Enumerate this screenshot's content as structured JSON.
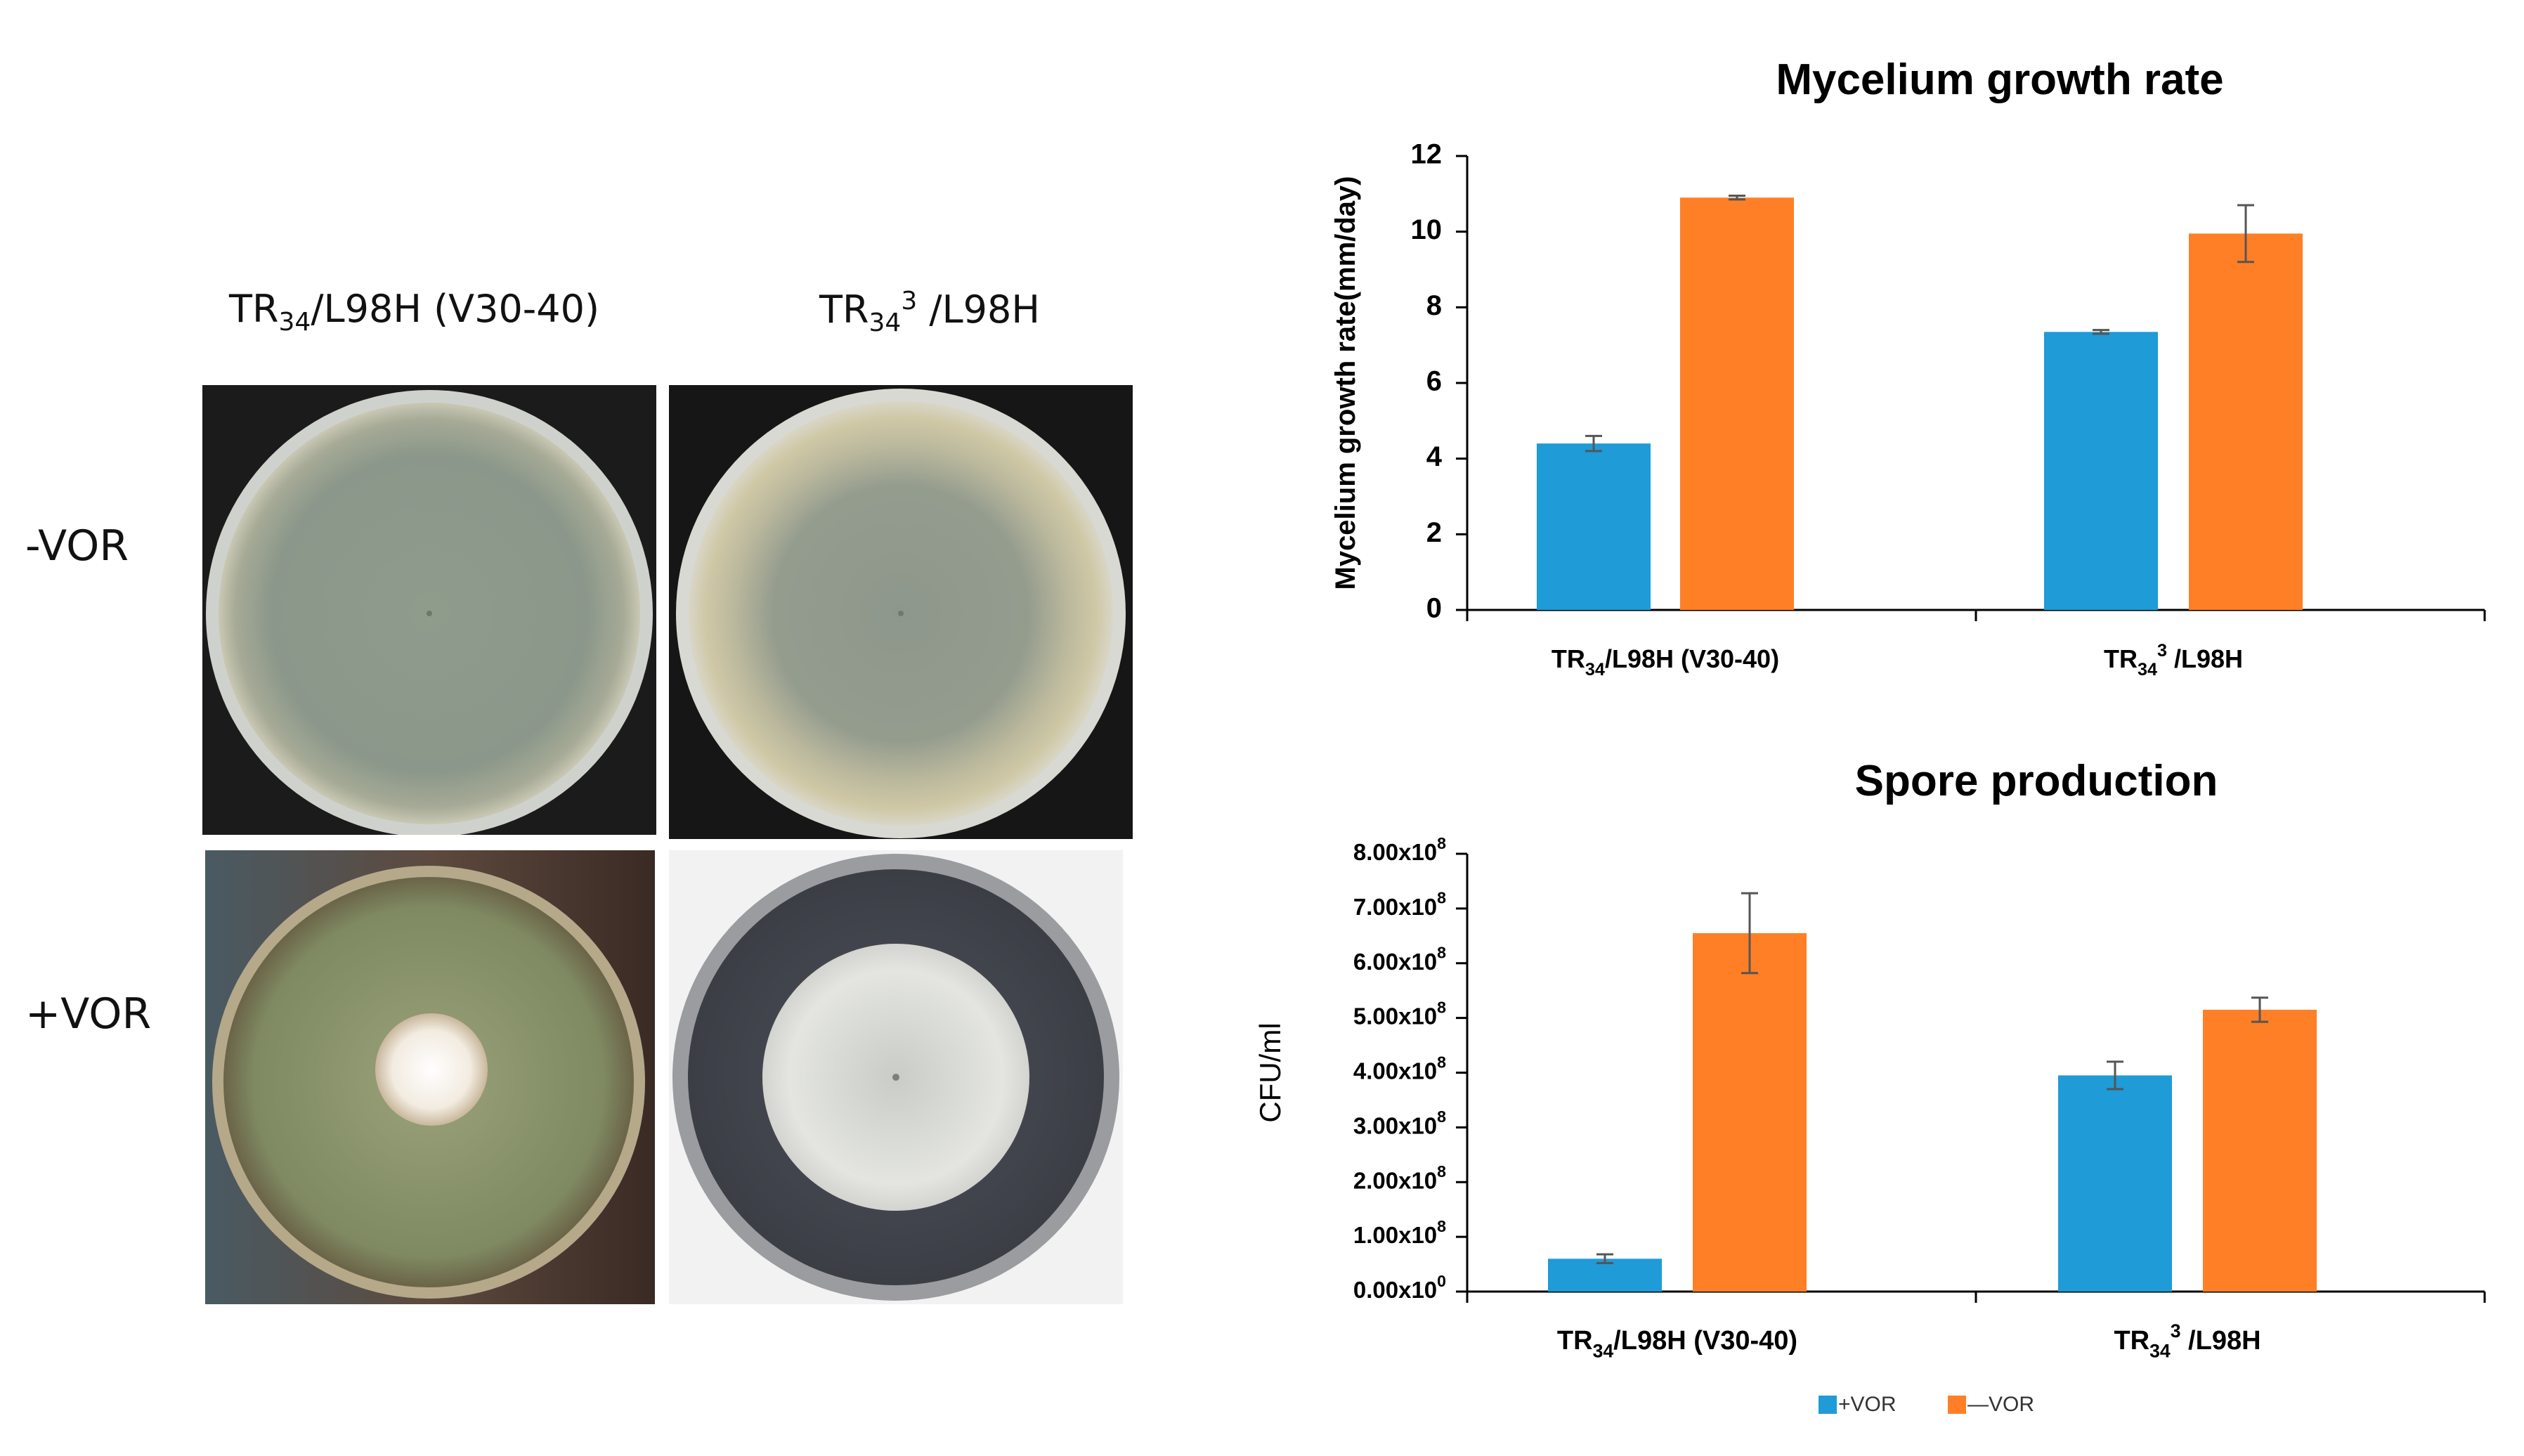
{
  "panel": {
    "column_labels": [
      {
        "main": "TR",
        "sub": "34",
        "sup": "",
        "rest": "/L98H (V30-40)"
      },
      {
        "main": "TR",
        "sub": "34",
        "sup": "3",
        "rest": " /L98H"
      }
    ],
    "row_labels": [
      "-VOR",
      "+VOR"
    ]
  },
  "colors": {
    "plus_vor": "#1f9bd7",
    "minus_vor": "#ff7f27",
    "error_bar": "#555555",
    "axis": "#000000"
  },
  "chart_data": [
    {
      "type": "bar",
      "title": "Mycelium growth rate",
      "xlabel": "",
      "ylabel": "Mycelium growth rate(mm/day)",
      "ylim": [
        0,
        12
      ],
      "yticks": [
        "0",
        "2",
        "4",
        "6",
        "8",
        "10",
        "12"
      ],
      "categories": [
        "TR34/L98H (V30-40)",
        "TR34³ /L98H"
      ],
      "series": [
        {
          "name": "+VOR",
          "values": [
            4.4,
            7.35
          ],
          "errors": [
            0.2,
            0.05
          ]
        },
        {
          "name": "—VOR",
          "values": [
            10.9,
            9.95
          ],
          "errors": [
            0.05,
            0.75
          ]
        }
      ]
    },
    {
      "type": "bar",
      "title": "Spore production",
      "xlabel": "",
      "ylabel": "CFU/ml",
      "ylim": [
        0,
        800000000
      ],
      "yticks": [
        "0.00x10⁰",
        "1.00x10⁸",
        "2.00x10⁸",
        "3.00x10⁸",
        "4.00x10⁸",
        "5.00x10⁸",
        "6.00x10⁸",
        "7.00x10⁸",
        "8.00x10⁸"
      ],
      "categories": [
        "TR34/L98H (V30-40)",
        "TR34³ /L98H"
      ],
      "series": [
        {
          "name": "+VOR",
          "values": [
            60000000,
            395000000
          ],
          "errors": [
            8000000,
            25000000
          ]
        },
        {
          "name": "—VOR",
          "values": [
            655000000,
            515000000
          ],
          "errors": [
            73000000,
            22000000
          ]
        }
      ],
      "legend": {
        "position": "bottom",
        "labels": [
          "+VOR",
          "—VOR"
        ]
      }
    }
  ]
}
